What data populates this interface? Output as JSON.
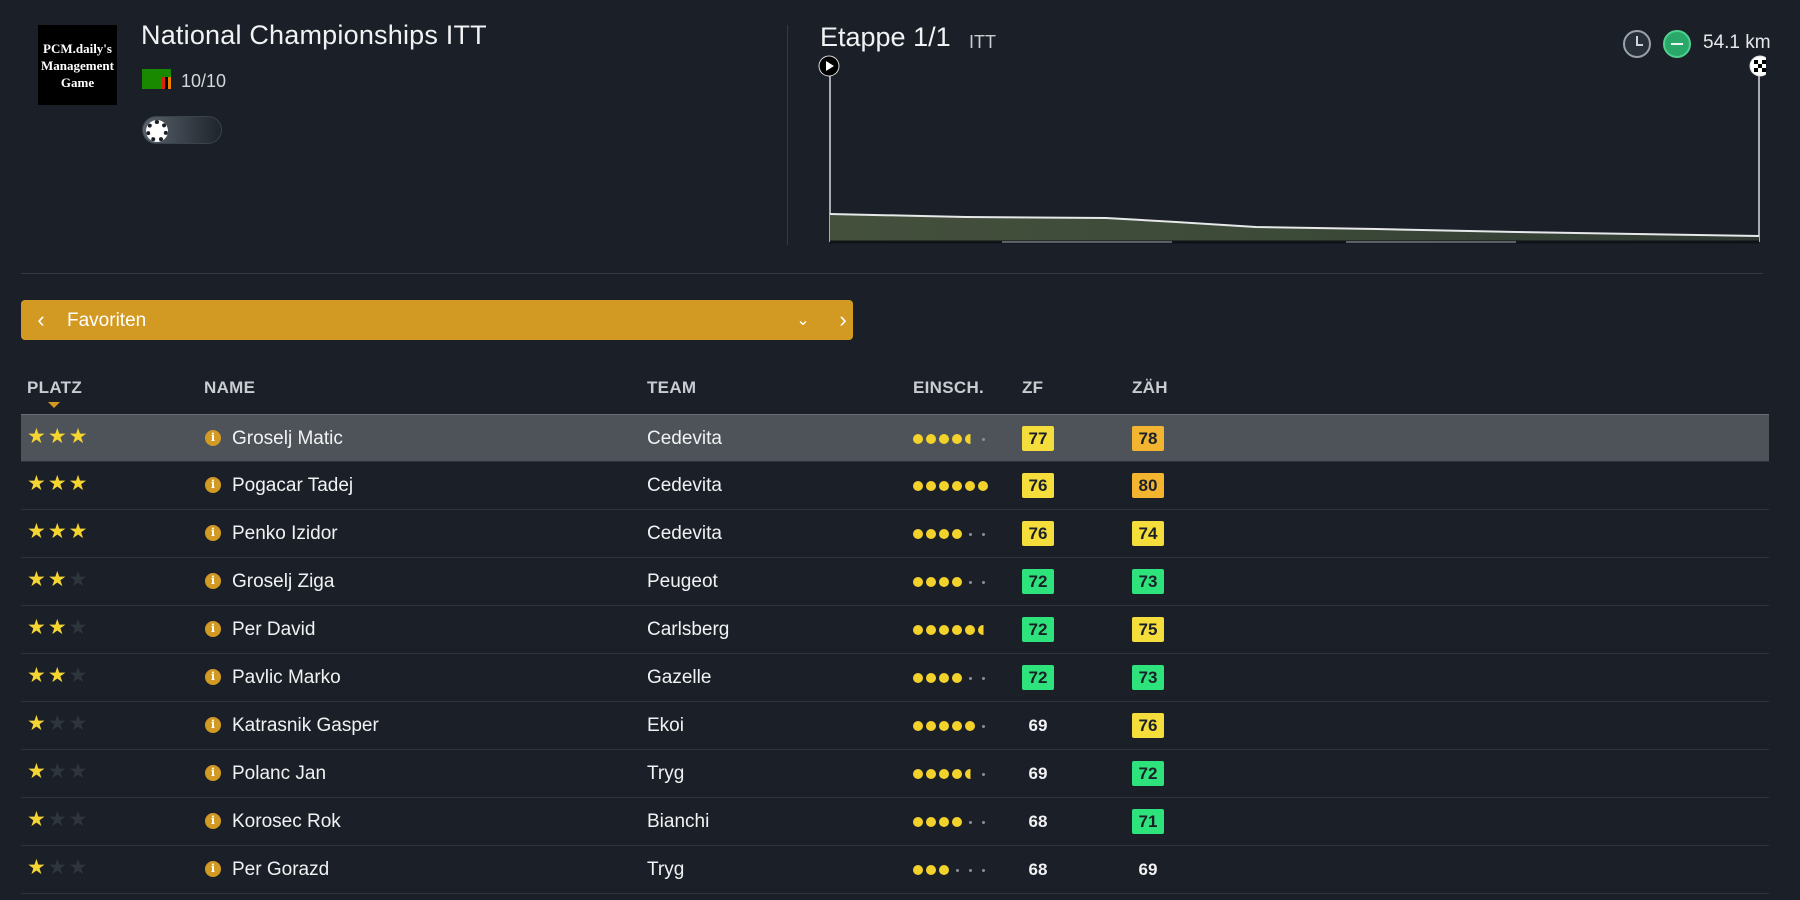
{
  "logo": {
    "text": "PCM.daily's Management Game"
  },
  "race": {
    "title": "National Championships ITT",
    "class": "10/10",
    "flag": "zambia-flag-icon",
    "weather": "sunny-icon"
  },
  "stage": {
    "title": "Etappe 1/1",
    "type": "ITT",
    "distance": "54.1 km",
    "icons": [
      "clock-icon",
      "flat-stage-icon"
    ]
  },
  "filter": {
    "label": "Favoriten",
    "icons": [
      "chevron-left-icon",
      "chevron-down-icon",
      "chevron-right-icon"
    ]
  },
  "table": {
    "headers": {
      "platz": "PLATZ",
      "name": "NAME",
      "team": "TEAM",
      "einsch": "EINSCH.",
      "zf": "ZF",
      "zah": "ZÄH"
    },
    "rows": [
      {
        "stars": 3,
        "name": "Groselj Matic",
        "team": "Cedevita",
        "rating": 4.5,
        "zf": "77",
        "zf_color": "yellow",
        "zah": "78",
        "zah_color": "orange"
      },
      {
        "stars": 3,
        "name": "Pogacar Tadej",
        "team": "Cedevita",
        "rating": 6,
        "zf": "76",
        "zf_color": "yellow",
        "zah": "80",
        "zah_color": "orange"
      },
      {
        "stars": 3,
        "name": "Penko Izidor",
        "team": "Cedevita",
        "rating": 4,
        "zf": "76",
        "zf_color": "yellow",
        "zah": "74",
        "zah_color": "yellow"
      },
      {
        "stars": 2,
        "name": "Groselj Ziga",
        "team": "Peugeot",
        "rating": 4,
        "zf": "72",
        "zf_color": "green",
        "zah": "73",
        "zah_color": "green"
      },
      {
        "stars": 2,
        "name": "Per David",
        "team": "Carlsberg",
        "rating": 5.5,
        "zf": "72",
        "zf_color": "green",
        "zah": "75",
        "zah_color": "yellow"
      },
      {
        "stars": 2,
        "name": "Pavlic Marko",
        "team": "Gazelle",
        "rating": 4,
        "zf": "72",
        "zf_color": "green",
        "zah": "73",
        "zah_color": "green"
      },
      {
        "stars": 1,
        "name": "Katrasnik Gasper",
        "team": "Ekoi",
        "rating": 5,
        "zf": "69",
        "zf_color": "none",
        "zah": "76",
        "zah_color": "yellow"
      },
      {
        "stars": 1,
        "name": "Polanc Jan",
        "team": "Tryg",
        "rating": 4.5,
        "zf": "69",
        "zf_color": "none",
        "zah": "72",
        "zah_color": "green"
      },
      {
        "stars": 1,
        "name": "Korosec Rok",
        "team": "Bianchi",
        "rating": 4,
        "zf": "68",
        "zf_color": "none",
        "zah": "71",
        "zah_color": "green"
      },
      {
        "stars": 1,
        "name": "Per Gorazd",
        "team": "Tryg",
        "rating": 3,
        "zf": "68",
        "zf_color": "none",
        "zah": "69",
        "zah_color": "none"
      }
    ]
  },
  "colors": {
    "accent": "#d39a23",
    "yellow": "#f5dd3b",
    "orange": "#f3b530",
    "green": "#2ee37c",
    "background": "#1b2028"
  }
}
